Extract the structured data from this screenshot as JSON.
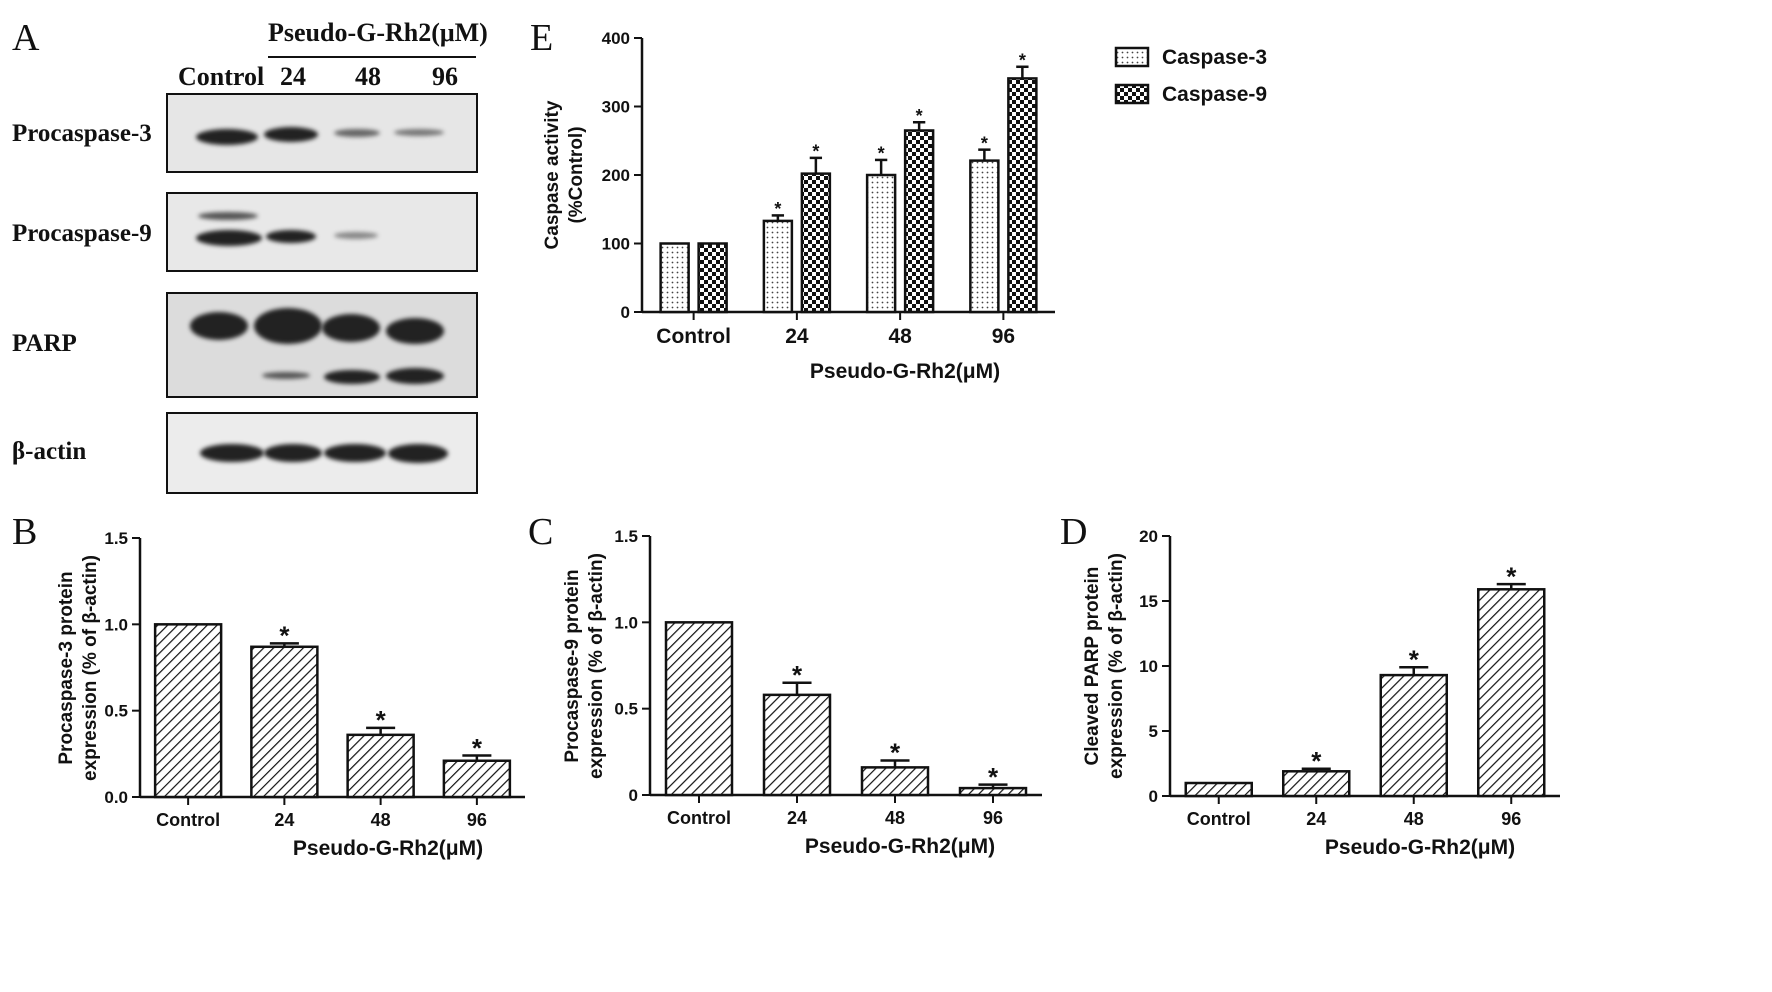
{
  "figure": {
    "panel_letters": [
      "A",
      "B",
      "C",
      "D",
      "E"
    ]
  },
  "western_blot": {
    "header": "Pseudo-G-Rh2(μM)",
    "lanes": [
      "Control",
      "24",
      "48",
      "96"
    ],
    "rows": [
      "Procaspase-3",
      "Procaspase-9",
      "PARP",
      "β-actin"
    ]
  },
  "chart_data": [
    {
      "panel": "B",
      "type": "bar",
      "categories": [
        "Control",
        "24",
        "48",
        "96"
      ],
      "values": [
        1.0,
        0.87,
        0.36,
        0.21
      ],
      "errors": [
        0,
        0.02,
        0.04,
        0.03
      ],
      "significant": [
        false,
        true,
        true,
        true
      ],
      "xlabel": "Pseudo-G-Rh2(μM)",
      "ylabel": "Procaspase-3 protein expression (% of β-actin)",
      "ylabel_lines": [
        "Procaspase-3 protein",
        "expression (% of β-actin)"
      ],
      "ylim": [
        0,
        1.5
      ],
      "yticks": [
        "0.0",
        "0.5",
        "1.0",
        "1.5"
      ],
      "pattern": "diagonal-hatch"
    },
    {
      "panel": "C",
      "type": "bar",
      "categories": [
        "Control",
        "24",
        "48",
        "96"
      ],
      "values": [
        1.0,
        0.58,
        0.16,
        0.04
      ],
      "errors": [
        0,
        0.07,
        0.04,
        0.02
      ],
      "significant": [
        false,
        true,
        true,
        true
      ],
      "xlabel": "Pseudo-G-Rh2(μM)",
      "ylabel": "Procaspase-9 protein expression (% of β-actin)",
      "ylabel_lines": [
        "Procaspase-9 protein",
        "expression (% of β-actin)"
      ],
      "ylim": [
        0,
        1.5
      ],
      "yticks": [
        "0",
        "0.5",
        "1.0",
        "1.5"
      ],
      "pattern": "diagonal-hatch"
    },
    {
      "panel": "D",
      "type": "bar",
      "categories": [
        "Control",
        "24",
        "48",
        "96"
      ],
      "values": [
        1.0,
        1.9,
        9.3,
        15.9
      ],
      "errors": [
        0,
        0.2,
        0.6,
        0.4
      ],
      "significant": [
        false,
        true,
        true,
        true
      ],
      "xlabel": "Pseudo-G-Rh2(μM)",
      "ylabel": "Cleaved PARP protein expression (% of β-actin)",
      "ylabel_lines": [
        "Cleaved PARP protein",
        "expression (% of β-actin)"
      ],
      "ylim": [
        0,
        20
      ],
      "yticks": [
        "0",
        "5",
        "10",
        "15",
        "20"
      ],
      "pattern": "diagonal-hatch"
    },
    {
      "panel": "E",
      "type": "bar",
      "categories": [
        "Control",
        "24",
        "48",
        "96"
      ],
      "series": [
        {
          "name": "Caspase-3",
          "values": [
            100,
            133,
            200,
            221
          ],
          "errors": [
            0,
            8,
            22,
            16
          ],
          "significant": [
            false,
            true,
            true,
            true
          ],
          "pattern": "dots"
        },
        {
          "name": "Caspase-9",
          "values": [
            100,
            202,
            265,
            341
          ],
          "errors": [
            0,
            23,
            12,
            17
          ],
          "significant": [
            false,
            true,
            true,
            true
          ],
          "pattern": "checker"
        }
      ],
      "xlabel": "Pseudo-G-Rh2(μM)",
      "ylabel": "Caspase activity (%Control)",
      "ylabel_lines": [
        "Caspase activity",
        "(%Control)"
      ],
      "ylim": [
        0,
        400
      ],
      "yticks": [
        "0",
        "100",
        "200",
        "300",
        "400"
      ],
      "legend_position": "right"
    }
  ],
  "significance_marker": "*"
}
